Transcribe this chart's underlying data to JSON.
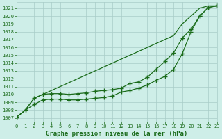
{
  "background_color": "#ceeee8",
  "grid_color": "#a8ccc8",
  "line_color": "#1a6b1a",
  "title": "Graphe pression niveau de la mer (hPa)",
  "xlim": [
    0,
    23
  ],
  "ylim": [
    1006.5,
    1021.8
  ],
  "yticks": [
    1007,
    1008,
    1009,
    1010,
    1011,
    1012,
    1013,
    1014,
    1015,
    1016,
    1017,
    1018,
    1019,
    1020,
    1021
  ],
  "xticks": [
    0,
    1,
    2,
    3,
    4,
    5,
    6,
    7,
    8,
    9,
    10,
    11,
    12,
    13,
    14,
    15,
    16,
    17,
    18,
    19,
    20,
    21,
    22,
    23
  ],
  "series1_x": [
    0,
    1,
    2,
    3,
    4,
    5,
    6,
    7,
    8,
    9,
    10,
    11,
    12,
    13,
    14,
    15,
    16,
    17,
    18,
    19,
    20,
    21,
    22,
    23
  ],
  "series1_y": [
    1007.1,
    1008.0,
    1008.7,
    1009.3,
    1009.4,
    1009.4,
    1009.3,
    1009.3,
    1009.4,
    1009.5,
    1009.6,
    1009.8,
    1010.3,
    1010.5,
    1010.8,
    1011.2,
    1011.8,
    1012.3,
    1013.2,
    1015.2,
    1018.0,
    1020.0,
    1021.1,
    1021.3
  ],
  "series2_x": [
    0,
    1,
    2,
    3,
    4,
    5,
    6,
    7,
    8,
    9,
    10,
    11,
    12,
    13,
    14,
    15,
    16,
    17,
    18,
    19,
    20,
    21,
    22,
    23
  ],
  "series2_y": [
    1007.1,
    1008.0,
    1009.5,
    1010.0,
    1010.1,
    1010.1,
    1010.0,
    1010.1,
    1010.2,
    1010.4,
    1010.5,
    1010.6,
    1010.8,
    1011.4,
    1011.6,
    1012.2,
    1013.2,
    1014.2,
    1015.3,
    1017.2,
    1018.3,
    1020.0,
    1021.1,
    1021.3
  ],
  "series3_x": [
    0,
    1,
    2,
    3,
    4,
    5,
    6,
    7,
    8,
    9,
    10,
    11,
    12,
    13,
    14,
    15,
    16,
    17,
    18,
    19,
    20,
    21,
    22,
    23
  ],
  "series3_y": [
    1007.1,
    1008.0,
    1009.5,
    1010.0,
    1010.5,
    1011.0,
    1011.5,
    1012.0,
    1012.5,
    1013.0,
    1013.5,
    1014.0,
    1014.5,
    1015.0,
    1015.5,
    1016.0,
    1016.5,
    1017.0,
    1017.5,
    1019.0,
    1020.0,
    1021.0,
    1021.3,
    1021.3
  ],
  "marker": "+",
  "marker_size": 4,
  "linewidth": 0.9,
  "title_fontsize": 6.5,
  "tick_fontsize": 5.0
}
